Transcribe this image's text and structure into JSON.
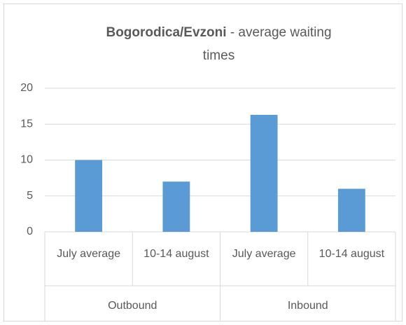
{
  "chart_data": {
    "type": "bar",
    "title_bold": "Bogorodica/Evzoni",
    "title_rest": "- average waiting times",
    "categories": [
      "July average",
      "10-14 august",
      "July average",
      "10-14 august"
    ],
    "groups": [
      "Outbound",
      "Inbound"
    ],
    "values": [
      10,
      7,
      16.3,
      6
    ],
    "color": "#5b9bd5",
    "ylim": [
      0,
      20
    ],
    "yticks": [
      0,
      5,
      10,
      15,
      20
    ],
    "grid": true
  }
}
